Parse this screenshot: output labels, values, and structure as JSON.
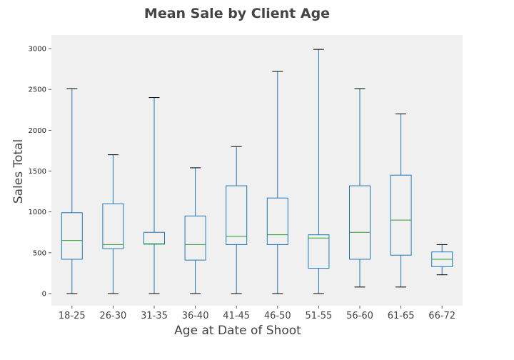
{
  "chart_data": {
    "type": "box",
    "title": "Mean Sale by Client Age",
    "xlabel": "Age at Date of Shoot",
    "ylabel": "Sales Total",
    "ylim": [
      -140,
      3160
    ],
    "yticks": [
      0,
      500,
      1000,
      1500,
      2000,
      2500,
      3000
    ],
    "grid": false,
    "colors": {
      "background": "#f0f0f0",
      "box": "#1f77b4",
      "median": "#2ca02c",
      "cap": "#000000"
    },
    "categories": [
      "18-25",
      "26-30",
      "31-35",
      "36-40",
      "41-45",
      "46-50",
      "51-55",
      "56-60",
      "61-65",
      "66-72"
    ],
    "boxes": [
      {
        "min": 0,
        "q1": 420,
        "median": 650,
        "q3": 990,
        "max": 2510
      },
      {
        "min": 0,
        "q1": 550,
        "median": 600,
        "q3": 1100,
        "max": 1700
      },
      {
        "min": 0,
        "q1": 605,
        "median": 610,
        "q3": 750,
        "max": 2400
      },
      {
        "min": 0,
        "q1": 410,
        "median": 600,
        "q3": 950,
        "max": 1540
      },
      {
        "min": 0,
        "q1": 600,
        "median": 700,
        "q3": 1320,
        "max": 1800
      },
      {
        "min": 0,
        "q1": 600,
        "median": 720,
        "q3": 1170,
        "max": 2720
      },
      {
        "min": 0,
        "q1": 310,
        "median": 680,
        "q3": 720,
        "max": 2990
      },
      {
        "min": 80,
        "q1": 420,
        "median": 750,
        "q3": 1320,
        "max": 2510
      },
      {
        "min": 80,
        "q1": 470,
        "median": 900,
        "q3": 1450,
        "max": 2200
      },
      {
        "min": 230,
        "q1": 330,
        "median": 420,
        "q3": 510,
        "max": 600
      }
    ]
  }
}
